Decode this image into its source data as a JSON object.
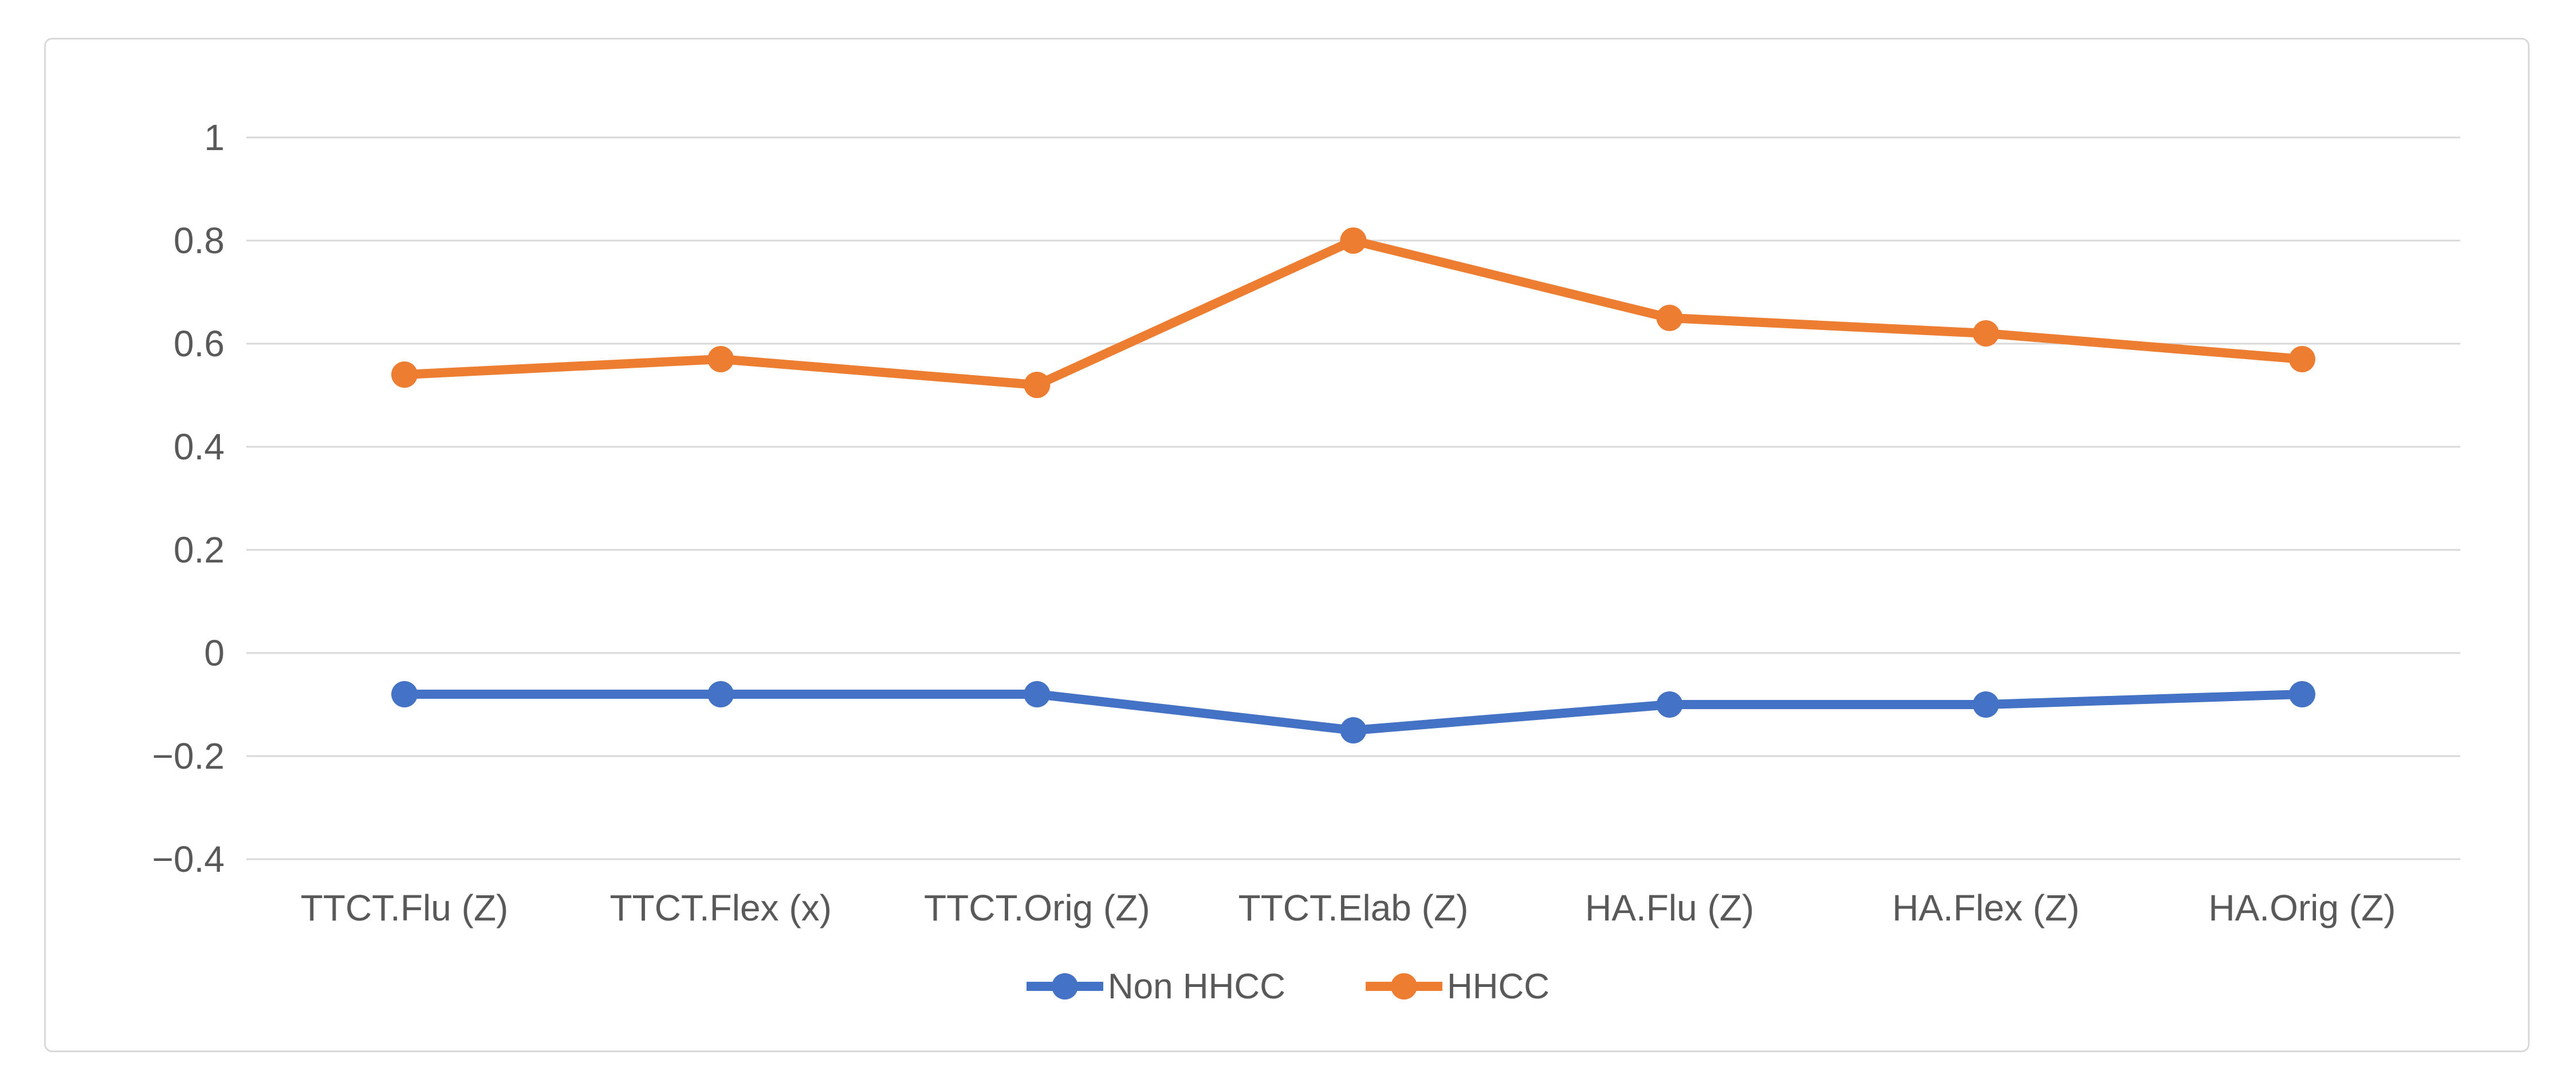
{
  "chart_data": {
    "type": "line",
    "title": "",
    "xlabel": "",
    "ylabel": "",
    "categories": [
      "TTCT.Flu (Z)",
      "TTCT.Flex (x)",
      "TTCT.Orig (Z)",
      "TTCT.Elab (Z)",
      "HA.Flu (Z)",
      "HA.Flex (Z)",
      "HA.Orig (Z)"
    ],
    "series": [
      {
        "name": "Non HHCC",
        "color": "#4472C4",
        "values": [
          -0.08,
          -0.08,
          -0.08,
          -0.15,
          -0.1,
          -0.1,
          -0.08
        ]
      },
      {
        "name": "HHCC",
        "color": "#ED7D31",
        "values": [
          0.54,
          0.57,
          0.52,
          0.8,
          0.65,
          0.62,
          0.57
        ]
      }
    ],
    "y_ticks": [
      "1",
      "0.8",
      "0.6",
      "0.4",
      "0.2",
      "0",
      "−0.2",
      "−0.4"
    ],
    "y_tick_values": [
      1,
      0.8,
      0.6,
      0.4,
      0.2,
      0,
      -0.2,
      -0.4
    ],
    "ylim": [
      -0.4,
      1
    ],
    "grid": true,
    "legend_position": "bottom"
  },
  "colors": {
    "gridline": "#D9D9D9",
    "axis_text": "#595959",
    "frame_border": "#D9D9D9",
    "background": "#FFFFFF"
  }
}
